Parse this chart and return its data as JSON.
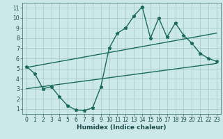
{
  "xlabel": "Humidex (Indice chaleur)",
  "bg_color": "#cce8e8",
  "grid_color": "#aacccc",
  "line_color": "#1a6b5a",
  "xlim": [
    -0.5,
    23.5
  ],
  "ylim": [
    0.5,
    11.5
  ],
  "yticks": [
    1,
    2,
    3,
    4,
    5,
    6,
    7,
    8,
    9,
    10,
    11
  ],
  "xticks": [
    0,
    1,
    2,
    3,
    4,
    5,
    6,
    7,
    8,
    9,
    10,
    11,
    12,
    13,
    14,
    15,
    16,
    17,
    18,
    19,
    20,
    21,
    22,
    23
  ],
  "jagged_x": [
    0,
    1,
    2,
    3,
    4,
    5,
    6,
    7,
    8,
    9,
    10,
    11,
    12,
    13,
    14,
    15,
    16,
    17,
    18,
    19,
    20,
    21,
    22,
    23
  ],
  "jagged_y": [
    5.2,
    4.5,
    3.0,
    3.2,
    2.2,
    1.3,
    0.9,
    0.85,
    1.1,
    3.2,
    7.0,
    8.5,
    9.0,
    10.2,
    11.1,
    8.0,
    10.0,
    8.1,
    9.5,
    8.3,
    7.5,
    6.5,
    6.0,
    5.7
  ],
  "upper_line_x": [
    0,
    23
  ],
  "upper_line_y": [
    5.1,
    8.5
  ],
  "lower_line_x": [
    0,
    23
  ],
  "lower_line_y": [
    3.0,
    5.5
  ],
  "marker": "*",
  "markersize": 3.5,
  "linewidth": 1.0,
  "tick_fontsize": 5.5,
  "label_fontsize": 6.5
}
